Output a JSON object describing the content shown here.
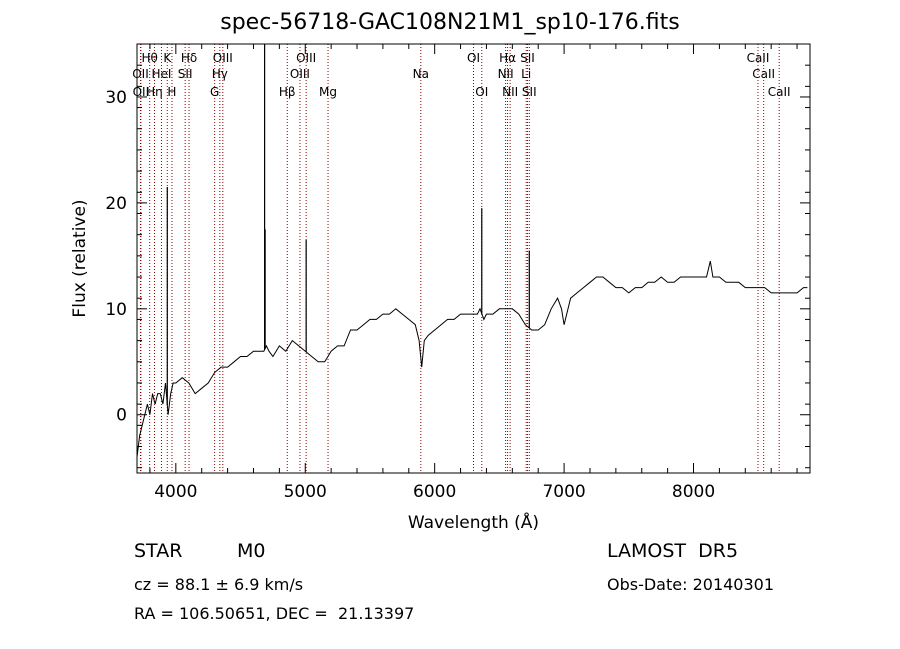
{
  "chart_data": {
    "type": "line",
    "title": "spec-56718-GAC108N21M1_sp10-176.fits",
    "xlabel": "Wavelength (Å)",
    "ylabel": "Flux (relative)",
    "xlim": [
      3700,
      8900
    ],
    "ylim": [
      -5.5,
      35
    ],
    "xticks": [
      4000,
      5000,
      6000,
      7000,
      8000
    ],
    "yticks": [
      0,
      10,
      20,
      30
    ],
    "grid": false,
    "line_color": "#000000",
    "marker_color": "#8b0000",
    "series": [
      {
        "x": [
          3700,
          3720,
          3740,
          3760,
          3780,
          3800,
          3820,
          3840,
          3860,
          3880,
          3900,
          3920,
          3940,
          3960,
          3980,
          4000,
          4050,
          4100,
          4150,
          4200,
          4250,
          4300,
          4350,
          4400,
          4450,
          4500,
          4550,
          4600,
          4650,
          4680,
          4700,
          4720,
          4750,
          4800,
          4850,
          4900,
          4950,
          5000,
          5050,
          5100,
          5150,
          5200,
          5250,
          5300,
          5350,
          5400,
          5450,
          5500,
          5550,
          5600,
          5650,
          5700,
          5750,
          5800,
          5850,
          5880,
          5900,
          5920,
          5950,
          6000,
          6050,
          6100,
          6150,
          6200,
          6250,
          6300,
          6330,
          6350,
          6380,
          6400,
          6450,
          6500,
          6550,
          6600,
          6650,
          6700,
          6750,
          6800,
          6850,
          6900,
          6950,
          6980,
          7000,
          7050,
          7100,
          7150,
          7200,
          7250,
          7300,
          7350,
          7400,
          7450,
          7500,
          7550,
          7600,
          7650,
          7700,
          7750,
          7800,
          7850,
          7900,
          7950,
          8000,
          8050,
          8100,
          8130,
          8150,
          8200,
          8250,
          8300,
          8350,
          8400,
          8450,
          8500,
          8550,
          8600,
          8650,
          8700,
          8750,
          8800,
          8850,
          8880
        ],
        "y": [
          -4,
          -2,
          -1,
          0,
          1,
          0,
          2,
          1,
          2,
          2,
          1,
          3,
          0,
          2,
          3,
          3,
          3.5,
          3,
          2,
          2.5,
          3,
          4,
          4.5,
          4.5,
          5,
          5.5,
          5.5,
          6,
          6,
          6,
          6.5,
          6,
          5.5,
          6.5,
          6,
          7,
          6.5,
          6,
          5.5,
          5,
          5,
          6,
          6.5,
          6.5,
          8,
          8,
          8.5,
          9,
          9,
          9.5,
          9.5,
          10,
          9.5,
          9,
          8.5,
          7,
          4.5,
          7,
          7.5,
          8,
          8.5,
          9,
          9,
          9.5,
          9.5,
          9.5,
          9.5,
          10,
          9,
          9.5,
          9.5,
          10,
          10,
          10,
          9.5,
          8.5,
          8,
          8,
          8.5,
          10,
          11,
          10,
          8.5,
          11,
          11.5,
          12,
          12.5,
          13,
          13,
          12.5,
          12,
          12,
          11.5,
          12,
          12,
          12.5,
          12.5,
          13,
          12.5,
          12.5,
          13,
          13,
          13,
          13,
          13,
          14.5,
          13,
          13,
          12.5,
          12.5,
          12.5,
          12,
          12,
          12,
          12,
          11.5,
          11.5,
          11.5,
          11.5,
          11.5,
          12,
          12
        ]
      }
    ],
    "emission_lines": [
      {
        "x": 3934,
        "y": 21.5
      },
      {
        "x": 4686,
        "y": 35
      },
      {
        "x": 4690,
        "y": 17.5
      },
      {
        "x": 5007,
        "y": 16.5
      },
      {
        "x": 6364,
        "y": 19.5
      },
      {
        "x": 6731,
        "y": 15.5
      }
    ],
    "line_markers": [
      {
        "x": 3727,
        "label": "OII",
        "row": 2
      },
      {
        "x": 3730,
        "label": "OII",
        "row": 3
      },
      {
        "x": 3798,
        "label": "Hθ",
        "row": 1
      },
      {
        "x": 3835,
        "label": "Hη",
        "row": 3
      },
      {
        "x": 3889,
        "label": "HeI",
        "row": 2
      },
      {
        "x": 3934,
        "label": "K",
        "row": 1
      },
      {
        "x": 3970,
        "label": "H",
        "row": 3
      },
      {
        "x": 4072,
        "label": "SII",
        "row": 2
      },
      {
        "x": 4102,
        "label": "Hδ",
        "row": 1
      },
      {
        "x": 4300,
        "label": "G",
        "row": 3
      },
      {
        "x": 4340,
        "label": "Hγ",
        "row": 2
      },
      {
        "x": 4363,
        "label": "OIII",
        "row": 1
      },
      {
        "x": 4861,
        "label": "Hβ",
        "row": 3
      },
      {
        "x": 4959,
        "label": "OIII",
        "row": 2
      },
      {
        "x": 5007,
        "label": "OIII",
        "row": 1
      },
      {
        "x": 5176,
        "label": "Mg",
        "row": 3
      },
      {
        "x": 5893,
        "label": "Na",
        "row": 2
      },
      {
        "x": 6300,
        "label": "OI",
        "row": 1
      },
      {
        "x": 6364,
        "label": "OI",
        "row": 3
      },
      {
        "x": 6548,
        "label": "NII",
        "row": 2
      },
      {
        "x": 6563,
        "label": "Hα",
        "row": 1
      },
      {
        "x": 6583,
        "label": "NII",
        "row": 3
      },
      {
        "x": 6707,
        "label": "Li",
        "row": 2
      },
      {
        "x": 6717,
        "label": "SII",
        "row": 1
      },
      {
        "x": 6731,
        "label": "SII",
        "row": 3
      },
      {
        "x": 8498,
        "label": "CaII",
        "row": 1
      },
      {
        "x": 8542,
        "label": "CaII",
        "row": 2
      },
      {
        "x": 8662,
        "label": "CaII",
        "row": 3
      }
    ]
  },
  "info": {
    "class": "STAR",
    "subclass": "M0",
    "survey": "LAMOST  DR5",
    "cz": "cz = 88.1 ± 6.9 km/s",
    "obs_date": "Obs-Date: 20140301",
    "radec": "RA = 106.50651, DEC =  21.13397"
  }
}
